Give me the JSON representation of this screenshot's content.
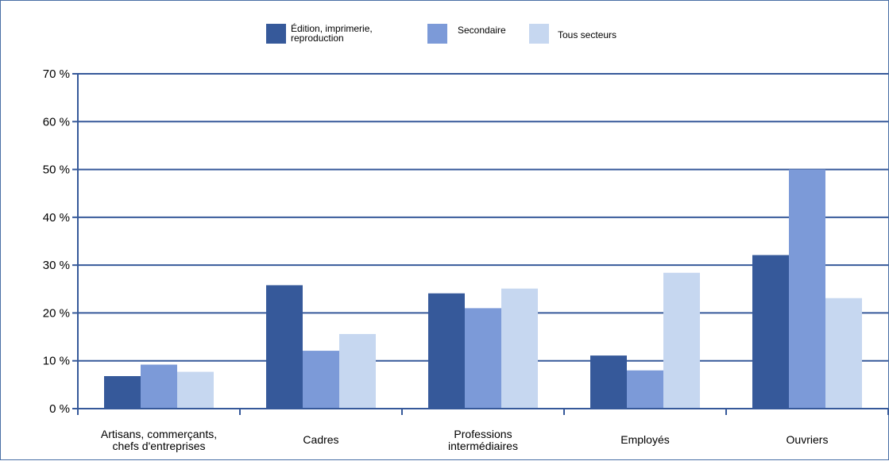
{
  "chart_data": {
    "type": "bar",
    "categories": [
      [
        "Artisans, commerçants,",
        "chefs d'entreprises"
      ],
      [
        "Cadres"
      ],
      [
        "Professions",
        "intermédiaires"
      ],
      [
        "Employés"
      ],
      [
        "Ouvriers"
      ]
    ],
    "series": [
      {
        "name": [
          "Édition, imprimerie,",
          "reproduction"
        ],
        "color": "#36599a",
        "values": [
          6.8,
          25.8,
          24.1,
          11.1,
          32.1
        ]
      },
      {
        "name": [
          "Secondaire"
        ],
        "color": "#7c9ad8",
        "values": [
          9.2,
          12.1,
          21.0,
          8.0,
          50.0
        ]
      },
      {
        "name": [
          "Tous secteurs"
        ],
        "color": "#c6d7f0",
        "values": [
          7.7,
          15.6,
          25.1,
          28.4,
          23.1
        ]
      }
    ],
    "y_ticks": [
      "0 %",
      "10 %",
      "20 %",
      "30 %",
      "40 %",
      "50 %",
      "60 %",
      "70 %"
    ],
    "ylim": [
      0,
      70
    ],
    "ystep": 10,
    "grid": true,
    "legend_position": "top-center",
    "axis_color": "#36599a"
  }
}
